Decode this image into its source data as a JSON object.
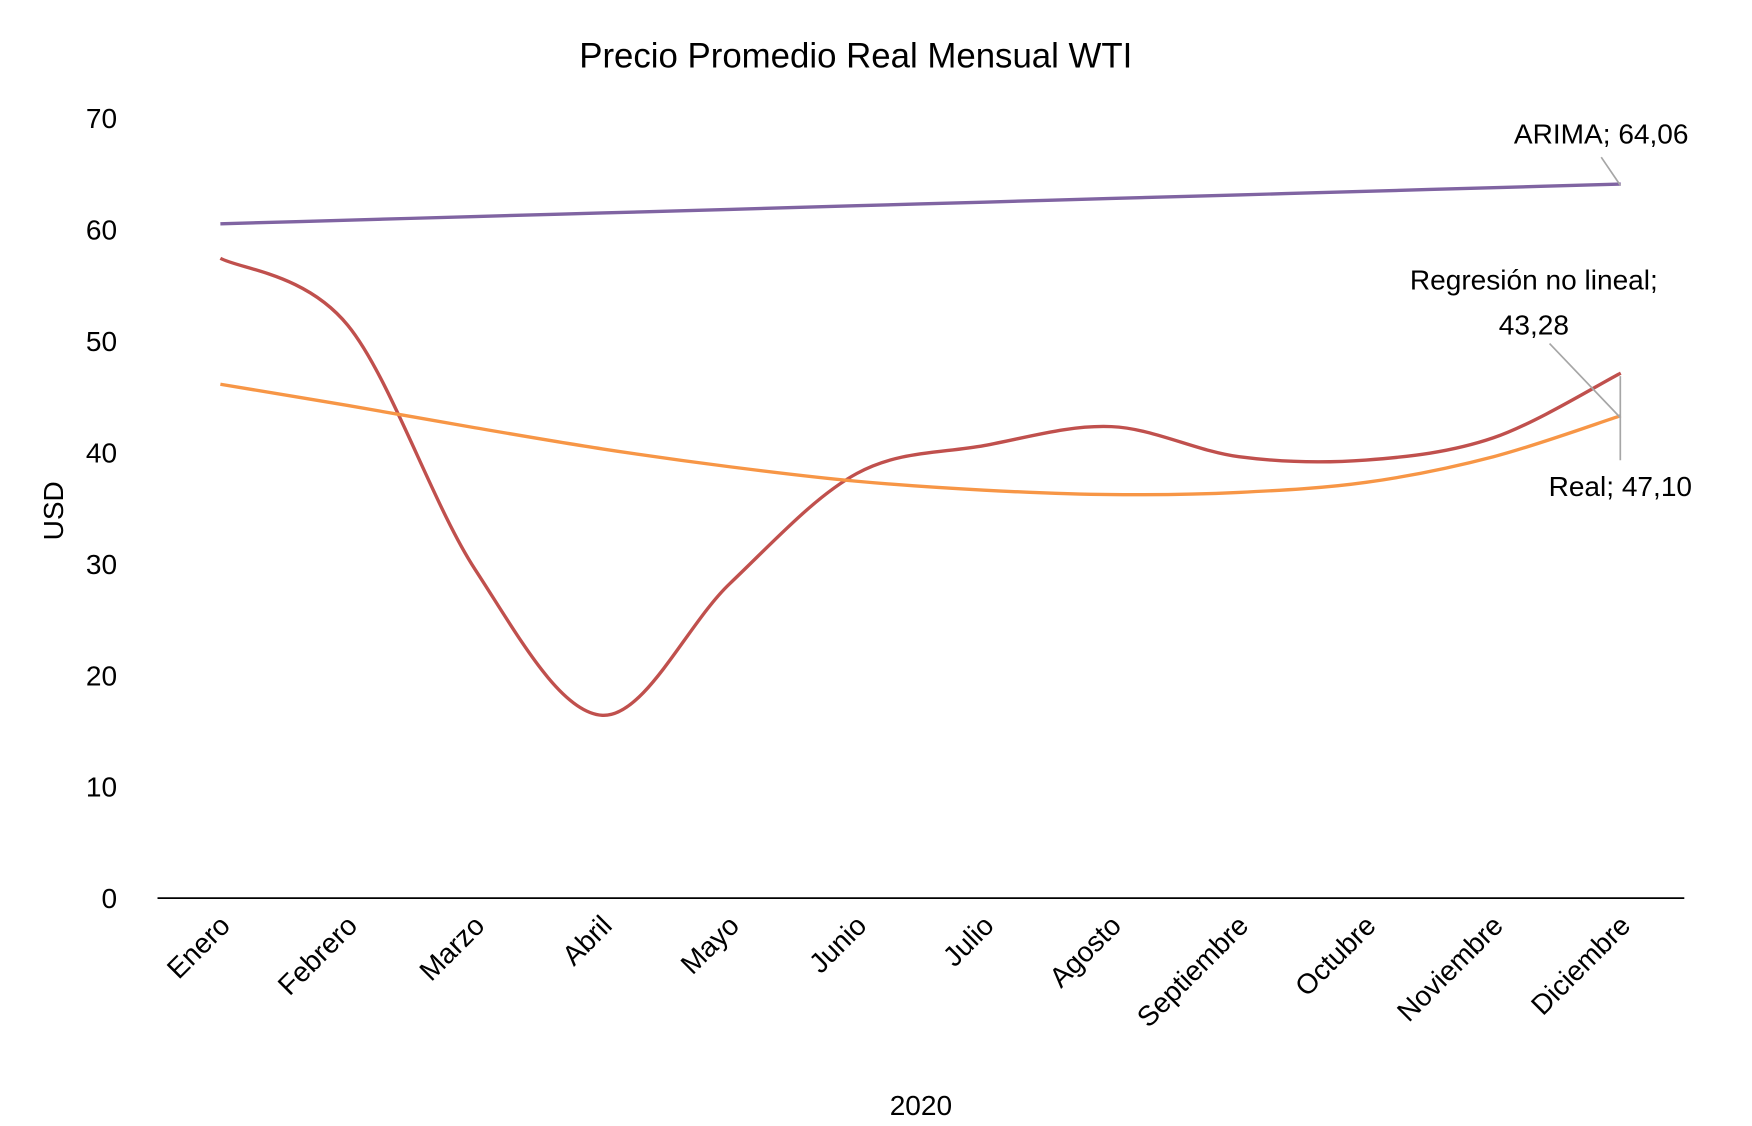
{
  "chart_data": {
    "type": "line",
    "title": "Precio Promedio Real Mensual WTI",
    "x_label": "2020",
    "y_label": "USD",
    "categories": [
      "Enero",
      "Febrero",
      "Marzo",
      "Abril",
      "Mayo",
      "Junio",
      "Julio",
      "Agosto",
      "Septiembre",
      "Octubre",
      "Noviembre",
      "Diciembre"
    ],
    "series": [
      {
        "name": "ARIMA",
        "color": "#8064a2",
        "values": [
          60.5,
          60.82,
          61.15,
          61.47,
          61.79,
          62.12,
          62.44,
          62.77,
          63.09,
          63.41,
          63.74,
          64.06
        ],
        "value_labels": [
          null,
          null,
          null,
          null,
          null,
          null,
          null,
          null,
          null,
          null,
          null,
          "ARIMA; 64,06"
        ]
      },
      {
        "name": "Real",
        "color": "#c0504d",
        "values": [
          57.4,
          51.4,
          29.5,
          16.4,
          28.2,
          38.1,
          40.6,
          42.3,
          39.6,
          39.3,
          41.3,
          47.1
        ],
        "value_labels": [
          null,
          null,
          null,
          null,
          null,
          null,
          null,
          null,
          null,
          null,
          null,
          "Real; 47,10"
        ]
      },
      {
        "name": "Regresión no lineal",
        "color": "#f79646",
        "values": [
          46.1,
          44.2,
          42.2,
          40.3,
          38.7,
          37.4,
          36.6,
          36.2,
          36.4,
          37.3,
          39.6,
          43.28
        ],
        "value_labels": [
          null,
          null,
          null,
          null,
          null,
          null,
          null,
          null,
          null,
          null,
          null,
          "Regresión no lineal; 43,28"
        ]
      }
    ],
    "ylim": [
      0,
      70
    ],
    "yticks": [
      0,
      10,
      20,
      30,
      40,
      50,
      60,
      70
    ],
    "grid": false,
    "smooth": true
  }
}
